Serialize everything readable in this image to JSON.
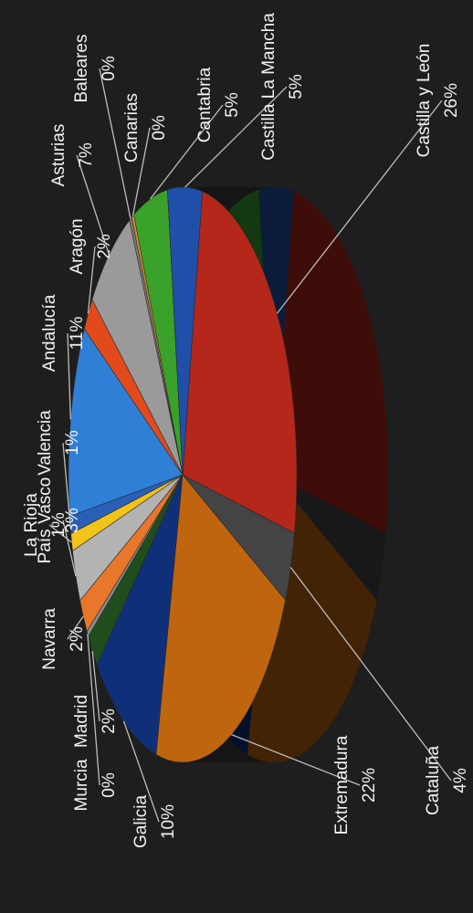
{
  "chart_data": {
    "type": "pie",
    "title": "",
    "unit": "%",
    "slices": [
      {
        "label": "Castilla y León",
        "value_text": "26%",
        "value": 26,
        "color": "#b5261b"
      },
      {
        "label": "Cataluña",
        "value_text": "4%",
        "value": 4,
        "color": "#444444"
      },
      {
        "label": "Extremadura",
        "value_text": "22%",
        "value": 22,
        "color": "#c0650f"
      },
      {
        "label": "Galicia",
        "value_text": "10%",
        "value": 10,
        "color": "#0f2f78"
      },
      {
        "label": "Madrid",
        "value_text": "2%",
        "value": 2,
        "color": "#1f4e1c"
      },
      {
        "label": "Murcia",
        "value_text": "0%",
        "value": 0,
        "color": "#8a8a8a"
      },
      {
        "label": "Navarra",
        "value_text": "2%",
        "value": 2,
        "color": "#e8772b"
      },
      {
        "label": "País Vasco",
        "value_text": "3%",
        "value": 3,
        "color": "#b3b3b3"
      },
      {
        "label": "La Rioja",
        "value_text": "1%",
        "value": 1,
        "color": "#f0c419"
      },
      {
        "label": "Valencia",
        "value_text": "1%",
        "value": 1,
        "color": "#2a5fb8"
      },
      {
        "label": "Andalucía",
        "value_text": "11%",
        "value": 11,
        "color": "#2f7fd6"
      },
      {
        "label": "Aragón",
        "value_text": "2%",
        "value": 2,
        "color": "#e24a1c"
      },
      {
        "label": "Asturias",
        "value_text": "7%",
        "value": 7,
        "color": "#9a9a9a"
      },
      {
        "label": "Baleares",
        "value_text": "0%",
        "value": 0,
        "color": "#7a7a7a"
      },
      {
        "label": "Canarias",
        "value_text": "0%",
        "value": 0,
        "color": "#d78a2e"
      },
      {
        "label": "Cantabria",
        "value_text": "5%",
        "value": 5,
        "color": "#3aa12a"
      },
      {
        "label": "Castilla La Mancha",
        "value_text": "5%",
        "value": 5,
        "color": "#1f4fa8"
      }
    ]
  }
}
